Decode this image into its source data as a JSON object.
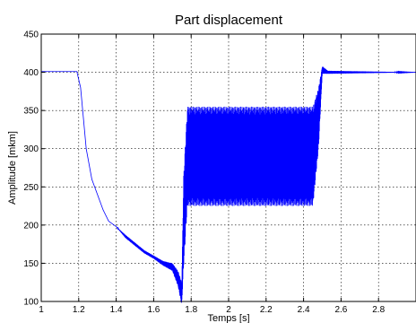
{
  "chart_data": {
    "type": "line",
    "title": "Part displacement",
    "xlabel": "Temps [s]",
    "ylabel": "Amplitude [mkm]",
    "xlim": [
      1,
      3
    ],
    "ylim": [
      100,
      450
    ],
    "xticks": [
      1,
      1.2,
      1.4,
      1.6,
      1.8,
      2,
      2.2,
      2.4,
      2.6,
      2.8
    ],
    "xtick_labels": [
      "1",
      "1.2",
      "1.4",
      "1.6",
      "1.8",
      "2",
      "2.2",
      "2.4",
      "2.6",
      "2.8"
    ],
    "yticks": [
      100,
      150,
      200,
      250,
      300,
      350,
      400,
      450
    ],
    "ytick_labels": [
      "100",
      "150",
      "200",
      "250",
      "300",
      "350",
      "400",
      "450"
    ],
    "grid": true,
    "line_color": "#0000ff",
    "series": [
      {
        "x": [
          1.0,
          1.19,
          1.21,
          1.24,
          1.27,
          1.3,
          1.33,
          1.36,
          1.4,
          1.45,
          1.5,
          1.55,
          1.6,
          1.65,
          1.7,
          1.73,
          1.75,
          1.76,
          1.78,
          2.0,
          2.4,
          2.45,
          2.48,
          2.5,
          2.53,
          3.0
        ],
        "y": [
          401,
          401,
          380,
          300,
          260,
          240,
          220,
          205,
          198,
          185,
          175,
          165,
          158,
          150,
          145,
          130,
          110,
          205,
          290,
          290,
          290,
          290,
          340,
          403,
          400,
          400
        ],
        "amplitude": [
          0,
          0,
          0,
          0,
          0,
          0,
          0,
          0,
          0,
          2,
          2,
          2,
          2,
          3,
          5,
          10,
          15,
          60,
          65,
          65,
          65,
          65,
          40,
          5,
          2,
          0
        ]
      }
    ]
  }
}
